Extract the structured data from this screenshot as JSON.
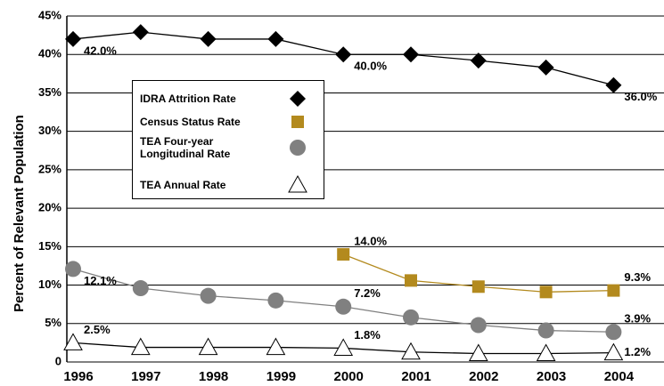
{
  "chart_data": {
    "type": "line",
    "y_label": "Percent of Relevant Population",
    "categories": [
      "1996",
      "1997",
      "1998",
      "1999",
      "2000",
      "2001",
      "2002",
      "2003",
      "2004"
    ],
    "ylim": [
      0,
      45
    ],
    "yticks": [
      0,
      {
        "value": 5,
        "label": "5%"
      },
      {
        "value": 10,
        "label": "10%"
      },
      {
        "value": 15,
        "label": "15%"
      },
      {
        "value": 20,
        "label": "20%"
      },
      {
        "value": 25,
        "label": "25%"
      },
      {
        "value": 30,
        "label": "30%"
      },
      {
        "value": 35,
        "label": "35%"
      },
      {
        "value": 40,
        "label": "40%"
      },
      {
        "value": 45,
        "label": "45%"
      }
    ],
    "grid": true,
    "series": [
      {
        "name": "IDRA Attrition Rate",
        "color": "#000000",
        "marker": "diamond",
        "values": [
          42.0,
          42.9,
          42.0,
          42.0,
          40.0,
          40.0,
          39.2,
          38.3,
          36.0
        ],
        "value_labels": [
          "42.0%",
          null,
          null,
          null,
          "40.0%",
          null,
          null,
          null,
          "36.0%"
        ]
      },
      {
        "name": "Census Status Rate",
        "color": "#b38a1e",
        "marker": "square",
        "values": [
          null,
          null,
          null,
          null,
          14.0,
          10.6,
          9.8,
          9.1,
          9.3
        ],
        "value_labels": [
          null,
          null,
          null,
          null,
          "14.0%",
          null,
          null,
          null,
          "9.3%"
        ]
      },
      {
        "name": "TEA Four-year Longitudinal Rate",
        "color": "#808080",
        "marker": "circle",
        "values": [
          12.1,
          9.6,
          8.6,
          8.0,
          7.2,
          5.8,
          4.8,
          4.1,
          3.9
        ],
        "value_labels": [
          "12.1%",
          null,
          null,
          null,
          "7.2%",
          null,
          null,
          null,
          "3.9%"
        ]
      },
      {
        "name": "TEA Annual Rate",
        "color": "#ffffff",
        "marker": "triangle",
        "values": [
          2.5,
          1.9,
          1.9,
          1.9,
          1.8,
          1.3,
          1.1,
          1.1,
          1.2
        ],
        "value_labels": [
          "2.5%",
          null,
          null,
          null,
          "1.8%",
          null,
          null,
          null,
          "1.2%"
        ]
      }
    ]
  }
}
